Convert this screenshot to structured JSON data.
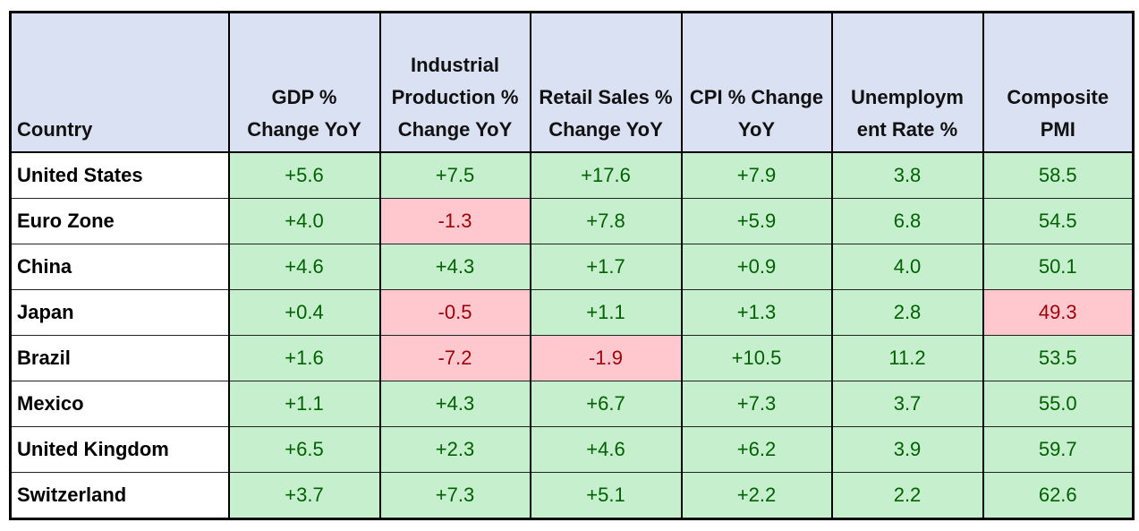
{
  "table": {
    "headers": [
      "Country",
      "GDP %\nChange YoY",
      "Industrial\nProduction %\nChange YoY",
      "Retail Sales %\nChange YoY",
      "CPI % Change\nYoY",
      "Unemploym\nent Rate %",
      "Composite\nPMI"
    ],
    "palette": {
      "good": {
        "bg": "#c6efce",
        "fg": "#006100"
      },
      "bad": {
        "bg": "#ffc7ce",
        "fg": "#9c0006"
      }
    },
    "rows": [
      {
        "country": "United States",
        "values": [
          "+5.6",
          "+7.5",
          "+17.6",
          "+7.9",
          "3.8",
          "58.5"
        ],
        "status": [
          "good",
          "good",
          "good",
          "good",
          "good",
          "good"
        ]
      },
      {
        "country": "Euro Zone",
        "values": [
          "+4.0",
          "-1.3",
          "+7.8",
          "+5.9",
          "6.8",
          "54.5"
        ],
        "status": [
          "good",
          "bad",
          "good",
          "good",
          "good",
          "good"
        ]
      },
      {
        "country": "China",
        "values": [
          "+4.6",
          "+4.3",
          "+1.7",
          "+0.9",
          "4.0",
          "50.1"
        ],
        "status": [
          "good",
          "good",
          "good",
          "good",
          "good",
          "good"
        ]
      },
      {
        "country": "Japan",
        "values": [
          "+0.4",
          "-0.5",
          "+1.1",
          "+1.3",
          "2.8",
          "49.3"
        ],
        "status": [
          "good",
          "bad",
          "good",
          "good",
          "good",
          "bad"
        ]
      },
      {
        "country": "Brazil",
        "values": [
          "+1.6",
          "-7.2",
          "-1.9",
          "+10.5",
          "11.2",
          "53.5"
        ],
        "status": [
          "good",
          "bad",
          "bad",
          "good",
          "good",
          "good"
        ]
      },
      {
        "country": "Mexico",
        "values": [
          "+1.1",
          "+4.3",
          "+6.7",
          "+7.3",
          "3.7",
          "55.0"
        ],
        "status": [
          "good",
          "good",
          "good",
          "good",
          "good",
          "good"
        ]
      },
      {
        "country": "United Kingdom",
        "values": [
          "+6.5",
          "+2.3",
          "+4.6",
          "+6.2",
          "3.9",
          "59.7"
        ],
        "status": [
          "good",
          "good",
          "good",
          "good",
          "good",
          "good"
        ]
      },
      {
        "country": "Switzerland",
        "values": [
          "+3.7",
          "+7.3",
          "+5.1",
          "+2.2",
          "2.2",
          "62.6"
        ],
        "status": [
          "good",
          "good",
          "good",
          "good",
          "good",
          "good"
        ]
      }
    ]
  }
}
